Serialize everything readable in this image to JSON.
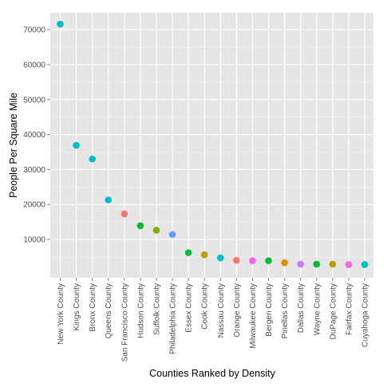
{
  "chart_data": {
    "type": "scatter",
    "xlabel": "Counties Ranked by Density",
    "ylabel": "People Per Square Mile",
    "ylim": [
      0,
      74000
    ],
    "yticks": [
      10000,
      20000,
      30000,
      40000,
      50000,
      60000,
      70000
    ],
    "ytick_labels": [
      "10000",
      "20000",
      "30000",
      "40000",
      "50000",
      "60000",
      "70000"
    ],
    "grid": true,
    "legend": "none",
    "background": "#E5E5E5",
    "points": [
      {
        "category": "New York County",
        "value": 71600,
        "color": "#00BFC4"
      },
      {
        "category": "Kings County",
        "value": 36900,
        "color": "#00BFC4"
      },
      {
        "category": "Bronx County",
        "value": 33000,
        "color": "#00BFC4"
      },
      {
        "category": "Queens County",
        "value": 21300,
        "color": "#00BFC4"
      },
      {
        "category": "San Francisco County",
        "value": 17300,
        "color": "#F8766D"
      },
      {
        "category": "Hudson County",
        "value": 13900,
        "color": "#00BA38"
      },
      {
        "category": "Suffolk County",
        "value": 12600,
        "color": "#7CAE00"
      },
      {
        "category": "Philadelphia County",
        "value": 11400,
        "color": "#619CFF"
      },
      {
        "category": "Essex County",
        "value": 6200,
        "color": "#00BA38"
      },
      {
        "category": "Cook County",
        "value": 5600,
        "color": "#B79F00"
      },
      {
        "category": "Nassau County",
        "value": 4700,
        "color": "#00BFC4"
      },
      {
        "category": "Orange County",
        "value": 4000,
        "color": "#F8766D"
      },
      {
        "category": "Milwaukee County",
        "value": 3900,
        "color": "#F564E3"
      },
      {
        "category": "Bergen County",
        "value": 3900,
        "color": "#00BA38"
      },
      {
        "category": "Pinellas County",
        "value": 3300,
        "color": "#DE8C00"
      },
      {
        "category": "Dallas County",
        "value": 2900,
        "color": "#C77CFF"
      },
      {
        "category": "Wayne County",
        "value": 2900,
        "color": "#00BA38"
      },
      {
        "category": "DuPage County",
        "value": 2900,
        "color": "#B79F00"
      },
      {
        "category": "Fairfax County",
        "value": 2800,
        "color": "#F564E3"
      },
      {
        "category": "Cuyahoga County",
        "value": 2800,
        "color": "#00BFC4"
      }
    ]
  }
}
